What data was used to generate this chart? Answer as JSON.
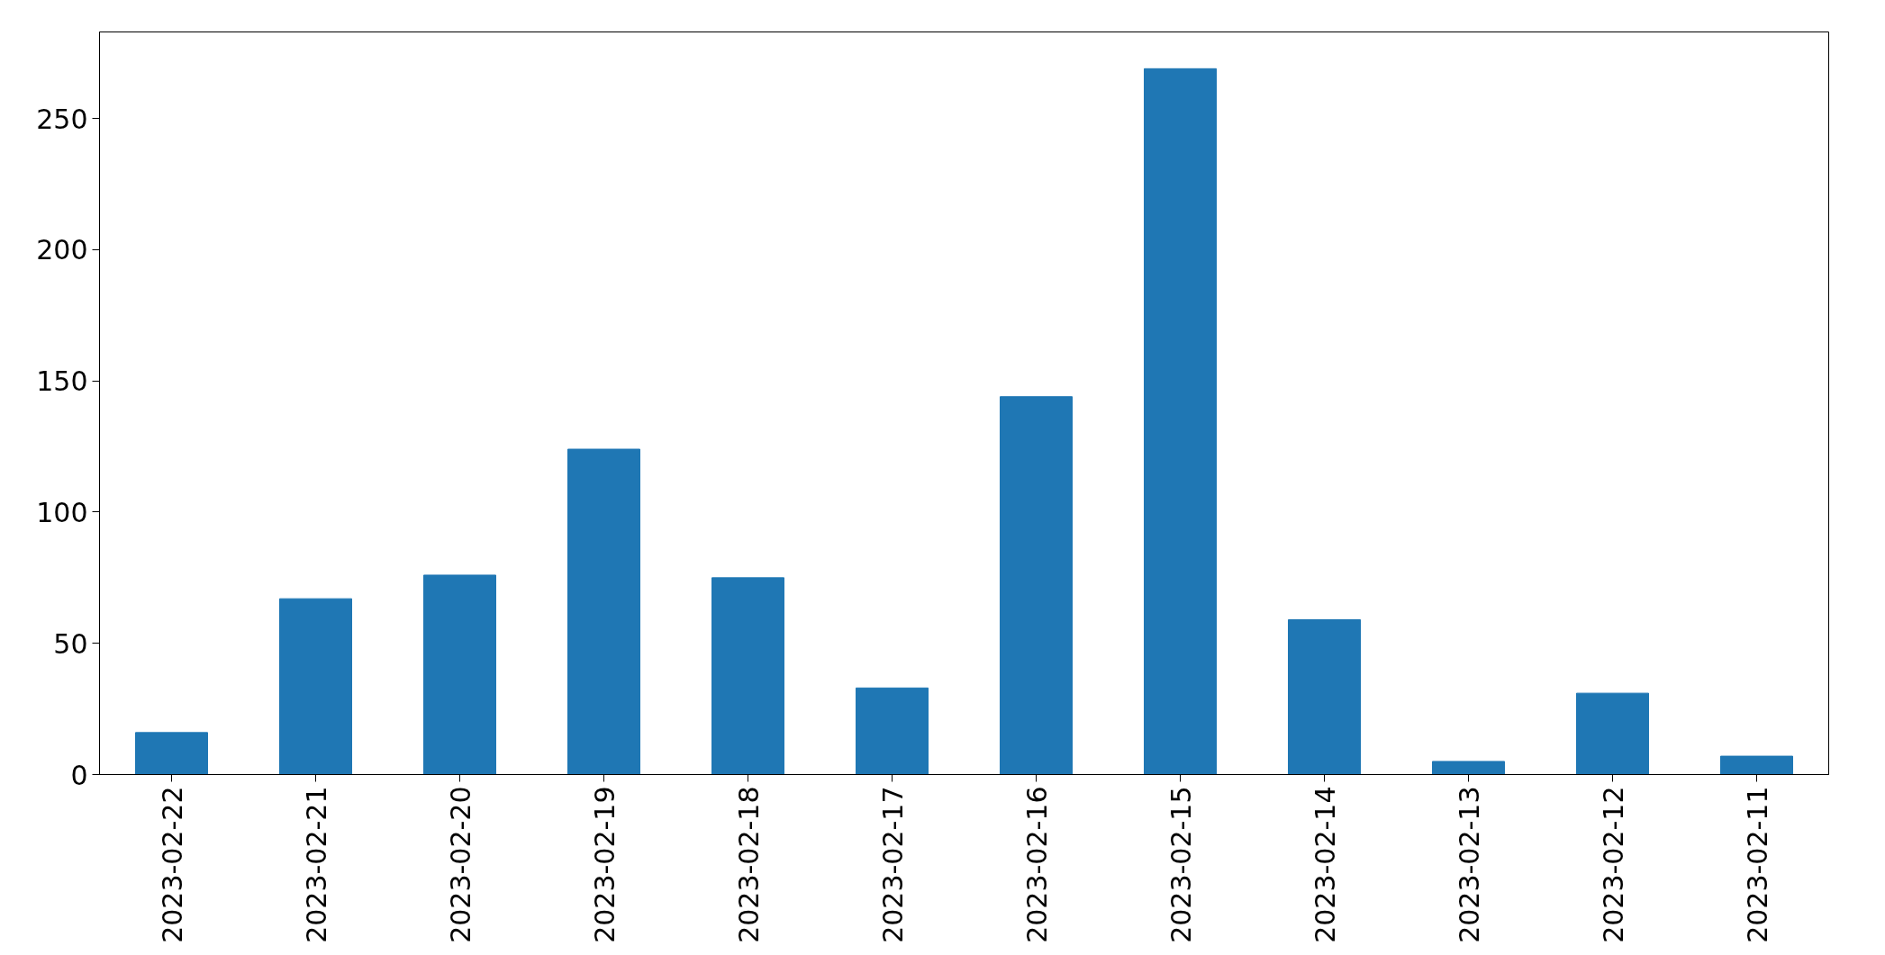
{
  "chart_data": {
    "type": "bar",
    "categories": [
      "2023-02-22",
      "2023-02-21",
      "2023-02-20",
      "2023-02-19",
      "2023-02-18",
      "2023-02-17",
      "2023-02-16",
      "2023-02-15",
      "2023-02-14",
      "2023-02-13",
      "2023-02-12",
      "2023-02-11"
    ],
    "values": [
      16,
      67,
      76,
      124,
      75,
      33,
      144,
      269,
      59,
      5,
      31,
      7
    ],
    "color": "#1f77b4",
    "ylim": [
      0,
      283
    ],
    "yticks": [
      0,
      50,
      100,
      150,
      200,
      250
    ],
    "grid": false
  }
}
